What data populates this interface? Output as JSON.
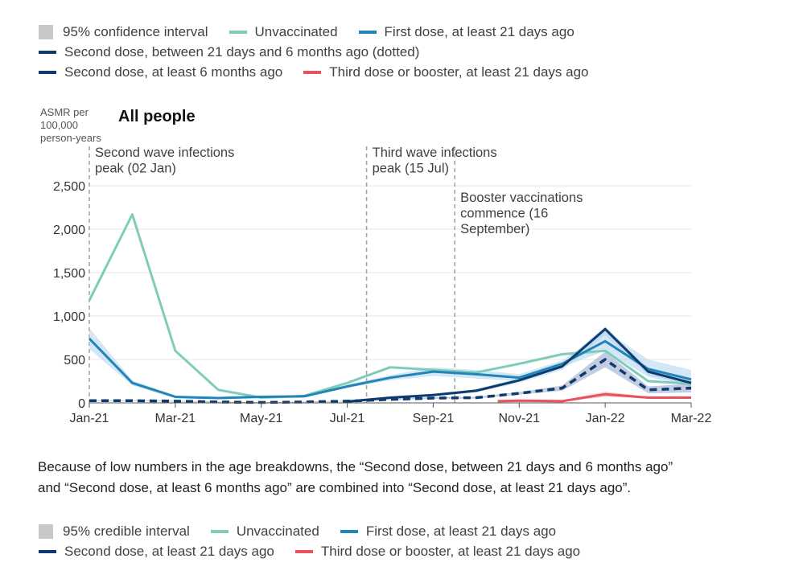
{
  "legend_top": {
    "ci": "95% confidence interval",
    "unvacc": "Unvaccinated",
    "first": "First dose, at least 21 days ago",
    "second_dotted": "Second dose, between 21 days and 6 months ago (dotted)",
    "second6": "Second dose, at least 6 months ago",
    "third": "Third dose or booster, at least 21 days ago"
  },
  "note": {
    "line1": "Because of low numbers in the age breakdowns, the “Second dose, between 21 days and 6 months ago”",
    "line2": "and “Second dose, at least 6 months ago” are combined into “Second dose, at least 21 days ago”."
  },
  "legend_bottom": {
    "ci": "95% credible interval",
    "unvacc": "Unvaccinated",
    "first": "First dose, at least 21 days ago",
    "second": "Second dose, at least 21 days ago",
    "third": "Third dose or booster, at least 21 days ago"
  },
  "colors": {
    "unvaccinated": "#7fccba",
    "first_dose": "#2285b8",
    "second_dose": "#0f3a6e",
    "third_dose": "#e8525c",
    "band": "#aed3ee",
    "grid": "#e6e6e6",
    "ci_swatch": "#c8c8c8"
  },
  "chart_data": {
    "type": "line",
    "title": "All people",
    "ylabel": "ASMR per 100,000 person-years",
    "ylim": [
      0,
      2500
    ],
    "yticks": [
      0,
      500,
      1000,
      1500,
      2000,
      2500
    ],
    "ytick_labels": [
      "0",
      "500",
      "1,000",
      "1,500",
      "2,000",
      "2,500"
    ],
    "xticks": [
      0,
      2,
      4,
      6,
      8,
      10,
      12,
      14
    ],
    "xtick_labels": [
      "Jan-21",
      "Mar-21",
      "May-21",
      "Jul-21",
      "Sep-21",
      "Nov-21",
      "Jan-22",
      "Mar-22"
    ],
    "x_note": "x = months since Jan-21",
    "annotations": [
      {
        "x": 0,
        "lines": [
          "Second wave infections",
          "peak (02 Jan)"
        ]
      },
      {
        "x": 6.45,
        "lines": [
          "Third wave infections",
          "peak (15 Jul)"
        ]
      },
      {
        "x": 8.5,
        "lines": [
          "Booster vaccinations",
          "commence (16",
          "September)"
        ]
      }
    ],
    "series": [
      {
        "name": "Unvaccinated",
        "x": [
          0,
          1,
          2,
          3,
          4,
          5,
          6,
          7,
          8,
          9,
          10,
          11,
          12,
          13,
          14
        ],
        "values": [
          1180,
          2170,
          600,
          150,
          60,
          80,
          230,
          410,
          380,
          350,
          450,
          560,
          600,
          250,
          220
        ]
      },
      {
        "name": "First dose, at least 21 days ago",
        "x": [
          0,
          1,
          2,
          3,
          4,
          5,
          6,
          7,
          8,
          9,
          10,
          11,
          12,
          13,
          14
        ],
        "values": [
          740,
          230,
          70,
          55,
          70,
          75,
          190,
          290,
          360,
          330,
          290,
          450,
          710,
          390,
          270
        ],
        "lower": [
          620,
          200,
          55,
          45,
          60,
          65,
          170,
          260,
          310,
          280,
          250,
          410,
          600,
          300,
          190
        ],
        "upper": [
          860,
          260,
          85,
          65,
          80,
          85,
          210,
          320,
          410,
          380,
          330,
          490,
          830,
          500,
          380
        ]
      },
      {
        "name": "Second dose, at least 6 months ago",
        "x": [
          6,
          7,
          8,
          9,
          10,
          11,
          12,
          13,
          14
        ],
        "values": [
          15,
          60,
          90,
          140,
          260,
          420,
          850,
          360,
          230
        ],
        "lower": [
          10,
          50,
          75,
          120,
          230,
          380,
          780,
          320,
          200
        ],
        "upper": [
          20,
          70,
          105,
          160,
          290,
          460,
          880,
          400,
          260
        ]
      },
      {
        "name": "Second dose, between 21 days and 6 months ago (dotted)",
        "x": [
          0,
          1,
          2,
          3,
          4,
          5,
          6,
          7,
          8,
          9,
          10,
          11,
          12,
          13,
          14
        ],
        "values": [
          25,
          25,
          20,
          10,
          5,
          10,
          20,
          40,
          55,
          60,
          110,
          170,
          500,
          150,
          170
        ],
        "lower": [
          20,
          20,
          15,
          5,
          3,
          5,
          15,
          35,
          45,
          50,
          95,
          140,
          410,
          110,
          120
        ],
        "upper": [
          30,
          30,
          25,
          15,
          8,
          15,
          25,
          45,
          65,
          70,
          125,
          200,
          590,
          190,
          220
        ]
      },
      {
        "name": "Third dose or booster, at least 21 days ago",
        "x": [
          9.5,
          10,
          11,
          12,
          13,
          14
        ],
        "values": [
          20,
          25,
          20,
          100,
          60,
          60
        ],
        "lower": [
          10,
          15,
          15,
          70,
          50,
          50
        ],
        "upper": [
          30,
          35,
          30,
          130,
          70,
          70
        ]
      }
    ]
  }
}
